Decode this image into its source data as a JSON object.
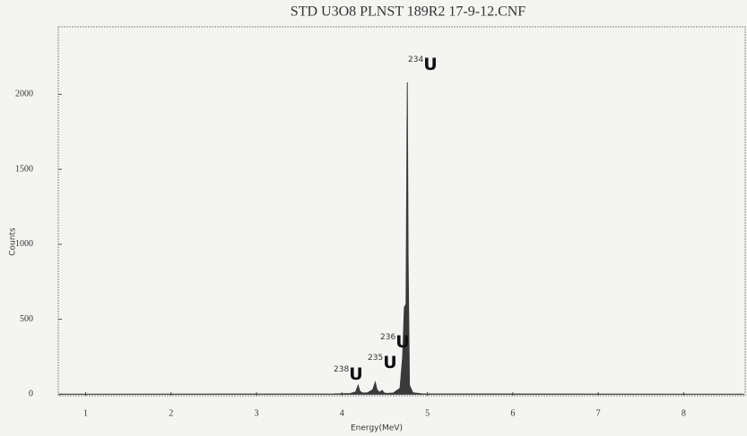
{
  "chart_data": {
    "type": "area",
    "title": "STD U3O8 PLNST 189R2 17-9-12.CNF",
    "x_label": "Energy(MeV)",
    "y_label": "Counts",
    "x": [
      0.7,
      3.9,
      4.1,
      4.16,
      4.19,
      4.21,
      4.24,
      4.3,
      4.36,
      4.39,
      4.41,
      4.44,
      4.47,
      4.49,
      4.52,
      4.6,
      4.68,
      4.71,
      4.73,
      4.75,
      4.765,
      4.775,
      4.79,
      4.83,
      4.95,
      8.7
    ],
    "series": [
      {
        "name": "Counts",
        "color": "#3a3a3a",
        "values": [
          0,
          2,
          5,
          15,
          60,
          20,
          8,
          10,
          30,
          80,
          30,
          12,
          25,
          10,
          5,
          8,
          40,
          250,
          580,
          600,
          2080,
          900,
          60,
          10,
          2,
          0
        ]
      }
    ],
    "annotations": [
      {
        "mass": "238",
        "element": "U"
      },
      {
        "mass": "235",
        "element": "U"
      },
      {
        "mass": "236",
        "element": "U"
      },
      {
        "mass": "234",
        "element": "U"
      }
    ],
    "xlim": [
      0.68,
      8.72
    ],
    "ylim": [
      -10,
      2450
    ],
    "xticks": [
      1,
      2,
      3,
      4,
      5,
      6,
      7,
      8
    ],
    "yticks": [
      0,
      500,
      1000,
      1500,
      2000
    ],
    "grid": false
  }
}
